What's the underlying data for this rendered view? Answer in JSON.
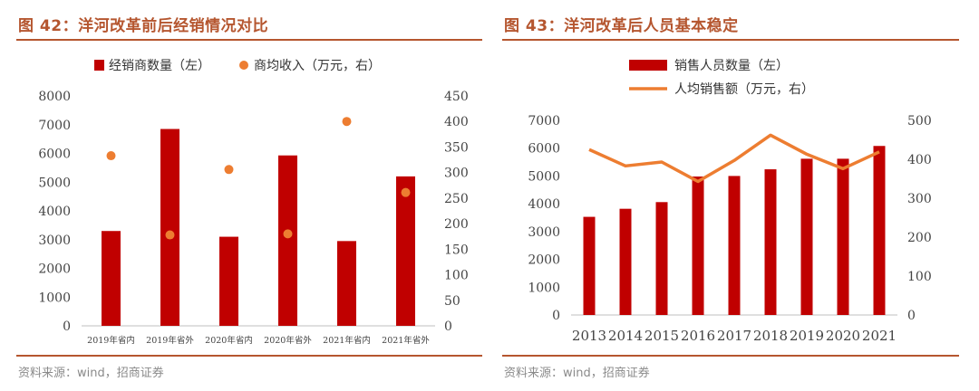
{
  "charts": [
    {
      "figure_title": "图 42：洋河改革前后经销情况对比",
      "source": "资料来源：wind，招商证券"
    },
    {
      "figure_title": "图 43：洋河改革后人员基本稳定",
      "source": "资料来源：wind，招商证券"
    }
  ],
  "colors": {
    "bar": "#c00000",
    "line": "#ed7d31",
    "title": "#b5562f",
    "source": "#8a8a8a"
  },
  "chart_data": [
    {
      "type": "bar",
      "title": "图 42：洋河改革前后经销情况对比",
      "categories": [
        "2019年省内",
        "2019年省外",
        "2020年省内",
        "2020年省外",
        "2021年省内",
        "2021年省外"
      ],
      "series": [
        {
          "name": "经销商数量（左）",
          "type": "bar",
          "axis": "left",
          "values": [
            3300,
            6850,
            3100,
            5930,
            2950,
            5200
          ]
        },
        {
          "name": "商均收入（万元，右）",
          "type": "scatter",
          "axis": "right",
          "values": [
            333,
            178,
            306,
            180,
            400,
            261
          ]
        }
      ],
      "y_left": {
        "min": 0,
        "max": 8000,
        "ticks": [
          0,
          1000,
          2000,
          3000,
          4000,
          5000,
          6000,
          7000,
          8000
        ]
      },
      "y_right": {
        "min": 0,
        "max": 450,
        "ticks": [
          0,
          50,
          100,
          150,
          200,
          250,
          300,
          350,
          400,
          450
        ]
      },
      "legend": "top",
      "grid": false
    },
    {
      "type": "bar",
      "title": "图 43：洋河改革后人员基本稳定",
      "categories": [
        "2013",
        "2014",
        "2015",
        "2016",
        "2017",
        "2018",
        "2019",
        "2020",
        "2021"
      ],
      "series": [
        {
          "name": "销售人员数量（左）",
          "type": "bar",
          "axis": "left",
          "values": [
            3530,
            3820,
            4060,
            4980,
            5000,
            5240,
            5620,
            5620,
            6080
          ]
        },
        {
          "name": "人均销售额（万元，右）",
          "type": "line",
          "axis": "right",
          "values": [
            425,
            383,
            393,
            343,
            397,
            462,
            413,
            376,
            419
          ]
        }
      ],
      "y_left": {
        "min": 0,
        "max": 7000,
        "ticks": [
          0,
          1000,
          2000,
          3000,
          4000,
          5000,
          6000,
          7000
        ]
      },
      "y_right": {
        "min": 0,
        "max": 500,
        "ticks": [
          0,
          100,
          200,
          300,
          400,
          500
        ]
      },
      "legend": "top",
      "grid": false
    }
  ]
}
